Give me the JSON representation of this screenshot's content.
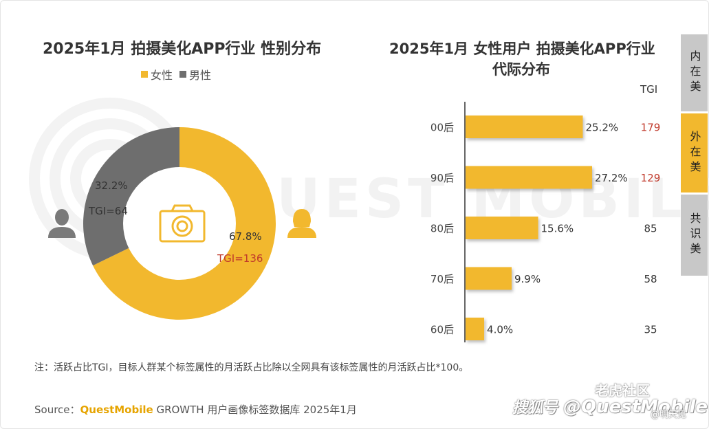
{
  "left_chart": {
    "title": "2025年1月 拍摄美化APP行业 性别分布",
    "legend": [
      {
        "name": "女性",
        "color": "#f2b82e"
      },
      {
        "name": "男性",
        "color": "#6e6e6e"
      }
    ],
    "female_pct_label": "67.8%",
    "female_tgi_label": "TGI=136",
    "male_pct_label": "32.2%",
    "male_tgi_label": "TGI=64",
    "icons": [
      "camera-icon",
      "male-user-icon",
      "female-user-icon"
    ]
  },
  "right_chart": {
    "title_line1": "2025年1月 女性用户 拍摄美化APP行业",
    "title_line2": "代际分布",
    "tgi_header": "TGI"
  },
  "chart_data": [
    {
      "type": "pie",
      "title": "2025年1月 拍摄美化APP行业 性别分布",
      "donut": true,
      "legend_position": "top",
      "slices": [
        {
          "name": "女性",
          "value": 67.8,
          "tgi": 136,
          "color": "#f2b82e"
        },
        {
          "name": "男性",
          "value": 32.2,
          "tgi": 64,
          "color": "#6e6e6e"
        }
      ]
    },
    {
      "type": "bar",
      "orientation": "horizontal",
      "title": "2025年1月 女性用户 拍摄美化APP行业 代际分布",
      "categories": [
        "00后",
        "90后",
        "80后",
        "70后",
        "60后"
      ],
      "values": [
        25.2,
        27.2,
        15.6,
        9.9,
        4.0
      ],
      "value_labels": [
        "25.2%",
        "27.2%",
        "15.6%",
        "9.9%",
        "4.0%"
      ],
      "tgi": [
        179,
        129,
        85,
        58,
        35
      ],
      "tgi_highlight": [
        true,
        true,
        false,
        false,
        false
      ],
      "bar_color": "#f2b82e",
      "highlight_color": "#c0392b",
      "xlim": [
        0,
        27.2
      ],
      "grid": false
    }
  ],
  "tabs": [
    "内在美",
    "外在美",
    "共识美"
  ],
  "active_tab": "外在美",
  "note": "注：活跃占比TGI，目标人群某个标签属性的月活跃占比除以全网具有该标签属性的月活跃占比*100。",
  "source": {
    "prefix": "Source：",
    "brand": "QuestMobile",
    "rest": " GROWTH 用户画像标签数据库 2025年1月"
  },
  "watermark": {
    "text": "QUEST MOBILE",
    "footer_hao": "搜狐号",
    "footer_handle": "@QuestMobile",
    "community": "老虎社区",
    "author": "@明天见"
  }
}
